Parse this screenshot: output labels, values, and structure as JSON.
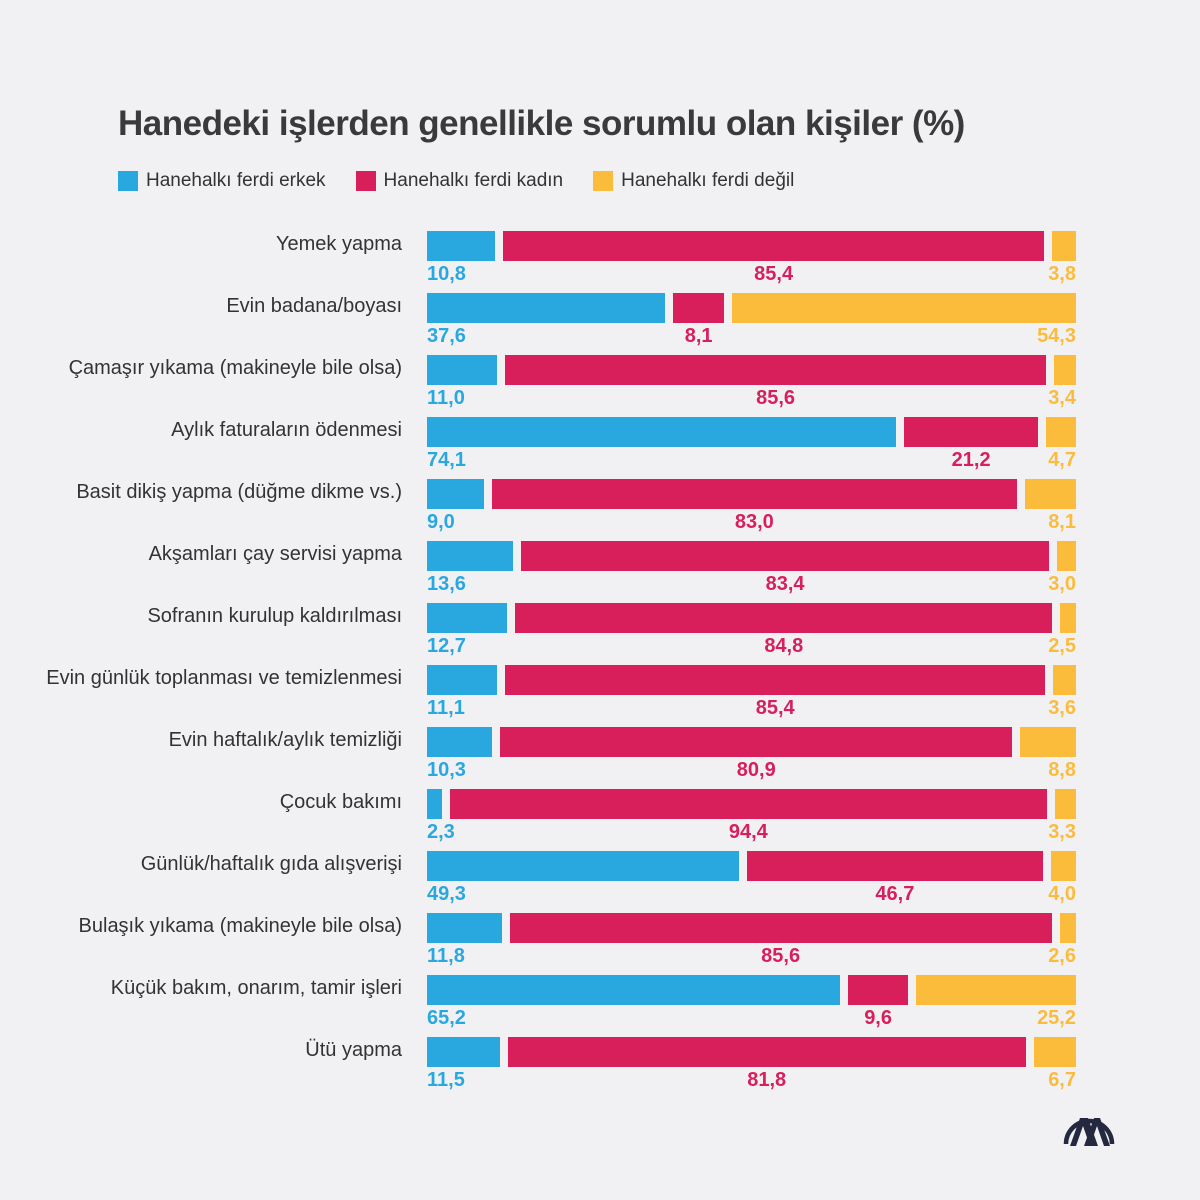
{
  "chart_data": {
    "type": "bar",
    "stacked": true,
    "orientation": "horizontal",
    "title": "Hanedeki işlerden genellikle sorumlu olan kişiler (%)",
    "legend_placement": "top-left",
    "categories": [
      "Yemek yapma",
      "Evin badana/boyası",
      "Çamaşır yıkama (makineyle bile olsa)",
      "Aylık faturaların ödenmesi",
      "Basit dikiş yapma (düğme dikme vs.)",
      "Akşamları çay servisi yapma",
      "Sofranın kurulup kaldırılması",
      "Evin günlük toplanması ve temizlenmesi",
      "Evin haftalık/aylık temizliği",
      "Çocuk bakımı",
      "Günlük/haftalık gıda alışverişi",
      "Bulaşık yıkama (makineyle bile olsa)",
      "Küçük bakım, onarım, tamir işleri",
      "Ütü yapma"
    ],
    "series": [
      {
        "name": "Hanehalkı ferdi erkek",
        "color": "#29a8e0",
        "values": [
          10.8,
          37.6,
          11.0,
          74.1,
          9.0,
          13.6,
          12.7,
          11.1,
          10.3,
          2.3,
          49.3,
          11.8,
          65.2,
          11.5
        ],
        "labels": [
          "10,8",
          "37,6",
          "11,0",
          "74,1",
          "9,0",
          "13,6",
          "12,7",
          "11,1",
          "10,3",
          "2,3",
          "49,3",
          "11,8",
          "65,2",
          "11,5"
        ]
      },
      {
        "name": "Hanehalkı ferdi kadın",
        "color": "#d81e5b",
        "values": [
          85.4,
          8.1,
          85.6,
          21.2,
          83.0,
          83.4,
          84.8,
          85.4,
          80.9,
          94.4,
          46.7,
          85.6,
          9.6,
          81.8
        ],
        "labels": [
          "85,4",
          "8,1",
          "85,6",
          "21,2",
          "83,0",
          "83,4",
          "84,8",
          "85,4",
          "80,9",
          "94,4",
          "46,7",
          "85,6",
          "9,6",
          "81,8"
        ]
      },
      {
        "name": "Hanehalkı ferdi değil",
        "color": "#fbbc3c",
        "values": [
          3.8,
          54.3,
          3.4,
          4.7,
          8.1,
          3.0,
          2.5,
          3.6,
          8.8,
          3.3,
          4.0,
          2.6,
          25.2,
          6.7
        ],
        "labels": [
          "3,8",
          "54,3",
          "3,4",
          "4,7",
          "8,1",
          "3,0",
          "2,5",
          "3,6",
          "8,8",
          "3,3",
          "4,0",
          "2,6",
          "25,2",
          "6,7"
        ]
      }
    ]
  },
  "logo": {
    "text": "AA",
    "color": "#25293f"
  }
}
